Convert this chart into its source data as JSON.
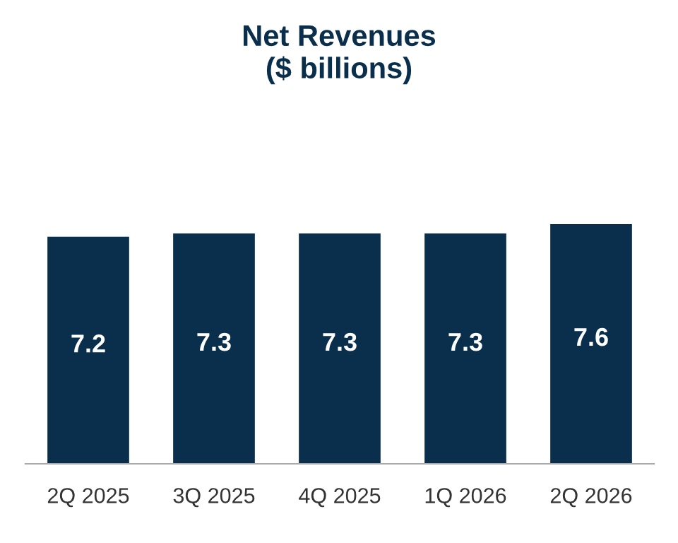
{
  "chart_data": {
    "type": "bar",
    "title": "Net Revenues\n($ billions)",
    "categories": [
      "2Q 2025",
      "3Q 2025",
      "4Q 2025",
      "1Q 2026",
      "2Q 2026"
    ],
    "values": [
      7.2,
      7.3,
      7.3,
      7.3,
      7.6
    ],
    "color": "#0a2f4c",
    "data_labels": true,
    "grid": false,
    "legend": false
  }
}
